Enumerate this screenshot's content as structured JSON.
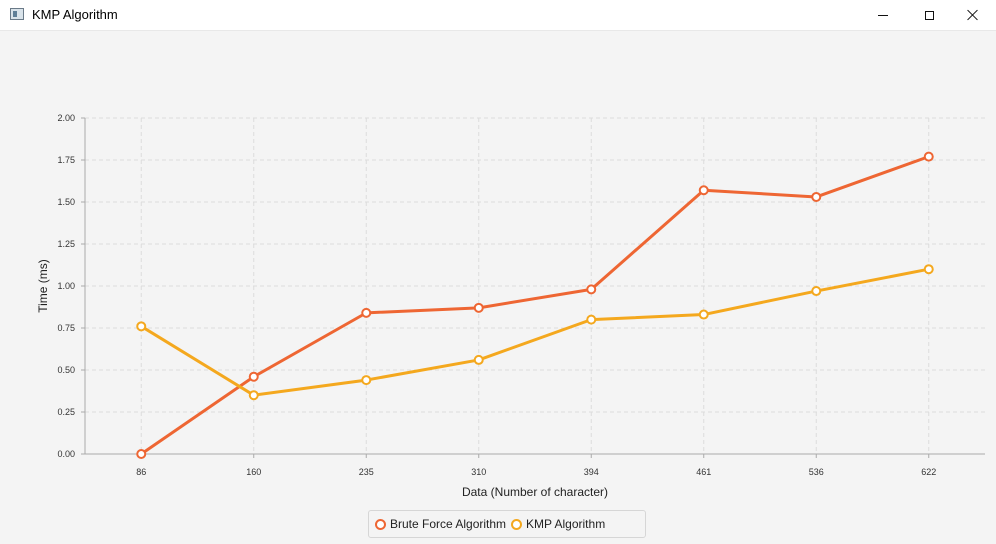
{
  "window": {
    "title": "KMP Algorithm",
    "icon": "java-app-icon"
  },
  "colors": {
    "series1": "#ee6633",
    "series2": "#f4a81e",
    "grid": "#dcdcdc",
    "axis": "#aaaaaa",
    "background": "#f4f4f4"
  },
  "chart_data": {
    "type": "line",
    "categories": [
      "86",
      "160",
      "235",
      "310",
      "394",
      "461",
      "536",
      "622"
    ],
    "series": [
      {
        "name": "Brute Force Algorithm",
        "values": [
          0.0,
          0.46,
          0.84,
          0.87,
          0.98,
          1.57,
          1.53,
          1.77
        ]
      },
      {
        "name": "KMP Algorithm",
        "values": [
          0.76,
          0.35,
          0.44,
          0.56,
          0.8,
          0.83,
          0.97,
          1.1
        ]
      }
    ],
    "xlabel": "Data (Number of character)",
    "ylabel": "Time (ms)",
    "ylim": [
      0,
      2.0
    ],
    "yticks": [
      "0.00",
      "0.25",
      "0.50",
      "0.75",
      "1.00",
      "1.25",
      "1.50",
      "1.75",
      "2.00"
    ],
    "grid": true,
    "legend": "bottom-center"
  }
}
